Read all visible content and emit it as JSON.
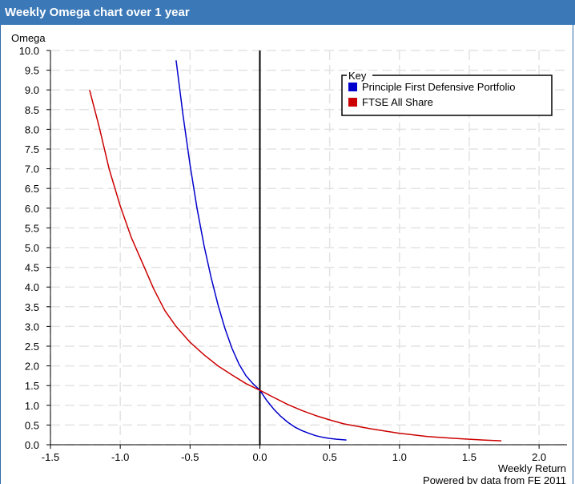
{
  "colors": {
    "header_bg": "#3b78b7",
    "header_text": "#ffffff",
    "series_blue": "#0000cc",
    "series_red": "#cc0000",
    "grid": "#e3e3e3"
  },
  "chart_data": {
    "type": "line",
    "title": "Weekly Omega chart over 1 year",
    "ylabel": "Omega",
    "xlabel": "Weekly Return",
    "footer": "Powered by data from FE 2011",
    "xlim": [
      -1.5,
      2.2
    ],
    "ylim": [
      0,
      10
    ],
    "x_ticks": [
      -1.5,
      -1.0,
      -0.5,
      0.0,
      0.5,
      1.0,
      1.5,
      2.0
    ],
    "x_tick_labels": [
      "-1.5",
      "-1.0",
      "-0.5",
      "0.0",
      "0.5",
      "1.0",
      "1.5",
      "2.0"
    ],
    "y_ticks": [
      0,
      0.5,
      1,
      1.5,
      2,
      2.5,
      3,
      3.5,
      4,
      4.5,
      5,
      5.5,
      6,
      6.5,
      7,
      7.5,
      8,
      8.5,
      9,
      9.5,
      10
    ],
    "y_tick_labels": [
      "0.0",
      "0.5",
      "1.0",
      "1.5",
      "2.0",
      "2.5",
      "3.0",
      "3.5",
      "4.0",
      "4.5",
      "5.0",
      "5.5",
      "6.0",
      "6.5",
      "7.0",
      "7.5",
      "8.0",
      "8.5",
      "9.0",
      "9.5",
      "10.0"
    ],
    "grid": true,
    "legend": {
      "title": "Key",
      "placement": "top-right"
    },
    "series": [
      {
        "name": "Principle First Defensive Portfolio",
        "color": "#0000cc",
        "x": [
          -0.6,
          -0.55,
          -0.5,
          -0.45,
          -0.4,
          -0.35,
          -0.3,
          -0.25,
          -0.2,
          -0.15,
          -0.1,
          -0.05,
          0.0,
          0.05,
          0.1,
          0.15,
          0.2,
          0.25,
          0.3,
          0.35,
          0.4,
          0.45,
          0.5,
          0.55,
          0.62
        ],
        "y": [
          9.75,
          8.35,
          7.1,
          6.0,
          5.05,
          4.25,
          3.55,
          2.95,
          2.45,
          2.05,
          1.75,
          1.55,
          1.38,
          1.12,
          0.9,
          0.72,
          0.57,
          0.45,
          0.36,
          0.29,
          0.23,
          0.19,
          0.16,
          0.14,
          0.12
        ]
      },
      {
        "name": "FTSE All Share",
        "color": "#cc0000",
        "x": [
          -1.22,
          -1.15,
          -1.08,
          -1.0,
          -0.92,
          -0.84,
          -0.76,
          -0.68,
          -0.6,
          -0.5,
          -0.4,
          -0.3,
          -0.2,
          -0.1,
          0.0,
          0.1,
          0.2,
          0.3,
          0.4,
          0.5,
          0.6,
          0.8,
          1.0,
          1.2,
          1.4,
          1.6,
          1.73
        ],
        "y": [
          9.0,
          8.05,
          7.0,
          6.05,
          5.25,
          4.6,
          3.95,
          3.4,
          3.0,
          2.6,
          2.28,
          2.0,
          1.77,
          1.55,
          1.38,
          1.2,
          1.02,
          0.87,
          0.74,
          0.63,
          0.53,
          0.4,
          0.29,
          0.21,
          0.16,
          0.12,
          0.1
        ]
      }
    ]
  }
}
